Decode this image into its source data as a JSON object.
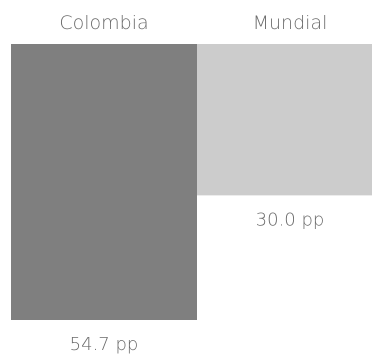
{
  "chart_data": {
    "type": "bar",
    "title": "",
    "xlabel": "",
    "ylabel": "",
    "categories": [
      "Colombia",
      "Mundial"
    ],
    "values": [
      54.7,
      30.0
    ],
    "value_labels": [
      "54.7 pp",
      "30.0 pp"
    ],
    "ylim": [
      0,
      54.7
    ],
    "grid": false,
    "colors": [
      "#7f7f7f",
      "#cccccc"
    ]
  }
}
